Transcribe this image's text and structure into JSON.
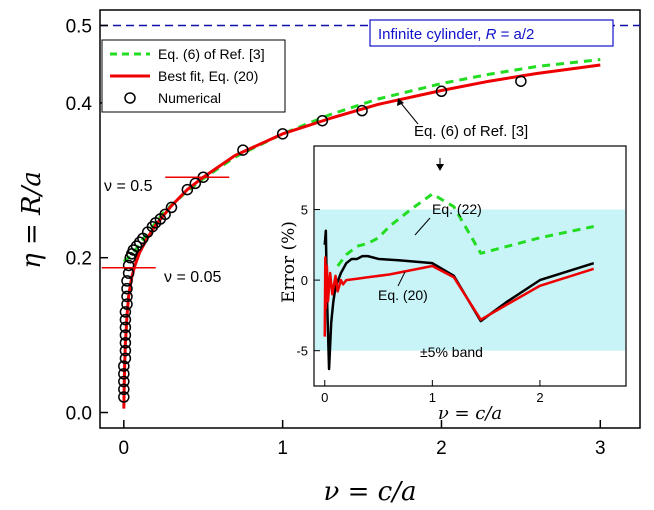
{
  "chart_data": [
    {
      "id": "main",
      "type": "line",
      "xlabel": "ν = c/a",
      "ylabel": "η = R/a",
      "xlim": [
        -0.15,
        3.25
      ],
      "ylim": [
        -0.02,
        0.52
      ],
      "xticks": [
        0,
        1,
        2,
        3
      ],
      "yticks": [
        0.0,
        0.2,
        0.4,
        0.5
      ],
      "xtick_labels": [
        "0",
        "1",
        "2",
        "3"
      ],
      "ytick_labels": [
        "0.0",
        "0.2",
        "0.4",
        "0.5"
      ],
      "grid": false,
      "legend_position": "top-left",
      "series": [
        {
          "name": "Eq. (6) of Ref. [3]",
          "style": "dashed",
          "color": "#22dd22",
          "x": [
            0.0,
            0.01,
            0.03,
            0.05,
            0.08,
            0.1,
            0.15,
            0.2,
            0.25,
            0.3,
            0.4,
            0.5,
            0.7,
            1.0,
            1.3,
            1.6,
            2.0,
            2.3,
            2.6,
            3.0
          ],
          "y": [
            0.195,
            0.197,
            0.2,
            0.205,
            0.212,
            0.218,
            0.232,
            0.245,
            0.258,
            0.268,
            0.286,
            0.302,
            0.33,
            0.36,
            0.385,
            0.405,
            0.425,
            0.437,
            0.447,
            0.456
          ]
        },
        {
          "name": "Best fit, Eq. (20)",
          "style": "solid",
          "color": "#ee0000",
          "x": [
            0.0,
            0.002,
            0.005,
            0.01,
            0.02,
            0.03,
            0.05,
            0.07,
            0.1,
            0.15,
            0.2,
            0.3,
            0.4,
            0.5,
            0.7,
            1.0,
            1.3,
            1.6,
            2.0,
            2.3,
            2.6,
            3.0
          ],
          "y": [
            0.005,
            0.03,
            0.06,
            0.09,
            0.125,
            0.15,
            0.175,
            0.19,
            0.207,
            0.226,
            0.242,
            0.267,
            0.288,
            0.304,
            0.332,
            0.36,
            0.38,
            0.398,
            0.416,
            0.428,
            0.438,
            0.449
          ]
        },
        {
          "name": "Numerical",
          "style": "markers",
          "marker": "open-circle",
          "color": "#000000",
          "x": [
            0.0,
            0.0,
            0.0,
            0.0,
            0.0,
            0.01,
            0.01,
            0.01,
            0.01,
            0.01,
            0.01,
            0.01,
            0.02,
            0.02,
            0.02,
            0.02,
            0.03,
            0.03,
            0.04,
            0.05,
            0.06,
            0.08,
            0.1,
            0.12,
            0.15,
            0.18,
            0.2,
            0.23,
            0.26,
            0.3,
            0.4,
            0.45,
            0.5,
            0.75,
            1.0,
            1.25,
            1.5,
            2.0,
            2.5
          ],
          "y": [
            0.02,
            0.03,
            0.04,
            0.05,
            0.06,
            0.07,
            0.08,
            0.09,
            0.1,
            0.11,
            0.12,
            0.13,
            0.14,
            0.15,
            0.16,
            0.17,
            0.18,
            0.19,
            0.2,
            0.205,
            0.21,
            0.215,
            0.22,
            0.225,
            0.233,
            0.24,
            0.245,
            0.25,
            0.256,
            0.265,
            0.288,
            0.296,
            0.304,
            0.339,
            0.36,
            0.377,
            0.39,
            0.415,
            0.428
          ]
        }
      ],
      "hline": {
        "y": 0.5,
        "color": "#1111aa",
        "style": "dashed"
      },
      "annotations": [
        {
          "id": "cylinder",
          "text_prefix": "Infinite cylinder, ",
          "text_math": "R",
          "text_suffix": " = a/2",
          "color": "#1111cc"
        },
        {
          "id": "nu05",
          "text": "ν = 0.5",
          "marker_x": 0.5,
          "marker_y": 0.304
        },
        {
          "id": "nu005",
          "text": "ν = 0.05",
          "marker_x": 0.05,
          "marker_y": 0.187
        },
        {
          "id": "eq6",
          "text": "Eq. (6) of Ref. [3]"
        }
      ]
    },
    {
      "id": "inset",
      "type": "line",
      "xlabel": "ν = c/a",
      "ylabel": "Error (%)",
      "xlim": [
        -0.1,
        2.8
      ],
      "ylim": [
        -7.5,
        9.5
      ],
      "xticks": [
        0,
        1,
        2
      ],
      "yticks": [
        -5,
        0,
        5
      ],
      "xtick_labels": [
        "0",
        "1",
        "2"
      ],
      "ytick_labels": [
        "-5",
        "0",
        "5"
      ],
      "band": {
        "from": -5,
        "to": 5,
        "color": "#c8f4f8",
        "label": "±5% band"
      },
      "series": [
        {
          "name": "Eq. (6) of Ref. [3]",
          "style": "dashed",
          "color": "#22dd22",
          "x": [
            0.12,
            0.2,
            0.3,
            0.4,
            0.5,
            0.6,
            0.8,
            1.0,
            1.2,
            1.45,
            1.6,
            2.0,
            2.5
          ],
          "y": [
            1.0,
            1.8,
            2.4,
            2.6,
            3.0,
            3.8,
            5.0,
            6.1,
            5.2,
            1.9,
            2.2,
            3.0,
            3.8
          ]
        },
        {
          "name": "Eq. (22)",
          "style": "solid",
          "color": "#000000",
          "x": [
            0.0,
            0.01,
            0.02,
            0.04,
            0.06,
            0.08,
            0.1,
            0.15,
            0.2,
            0.25,
            0.3,
            0.35,
            0.4,
            0.5,
            0.7,
            1.0,
            1.2,
            1.45,
            1.7,
            2.0,
            2.5
          ],
          "y": [
            2.5,
            3.5,
            -1.0,
            -6.3,
            -3.0,
            -1.5,
            -0.5,
            0.5,
            1.2,
            1.5,
            1.5,
            1.7,
            1.7,
            1.5,
            1.4,
            1.2,
            0.3,
            -2.9,
            -1.5,
            0.0,
            1.2
          ]
        },
        {
          "name": "Eq. (20)",
          "style": "solid",
          "color": "#ee0000",
          "x": [
            0.0,
            0.005,
            0.01,
            0.02,
            0.03,
            0.05,
            0.07,
            0.1,
            0.12,
            0.15,
            0.17,
            0.2,
            0.3,
            0.4,
            0.6,
            0.8,
            1.0,
            1.2,
            1.45,
            1.7,
            2.0,
            2.5
          ],
          "y": [
            -4.0,
            1.6,
            -2.0,
            1.0,
            -1.5,
            0.5,
            -1.0,
            0.3,
            -0.8,
            0.0,
            -0.3,
            0.0,
            0.1,
            0.2,
            0.4,
            0.7,
            1.0,
            0.2,
            -2.8,
            -1.7,
            -0.4,
            0.8
          ]
        }
      ],
      "annotations": [
        {
          "id": "eq22",
          "text": "Eq. (22)"
        },
        {
          "id": "eq20",
          "text": "Eq. (20)"
        }
      ]
    }
  ]
}
